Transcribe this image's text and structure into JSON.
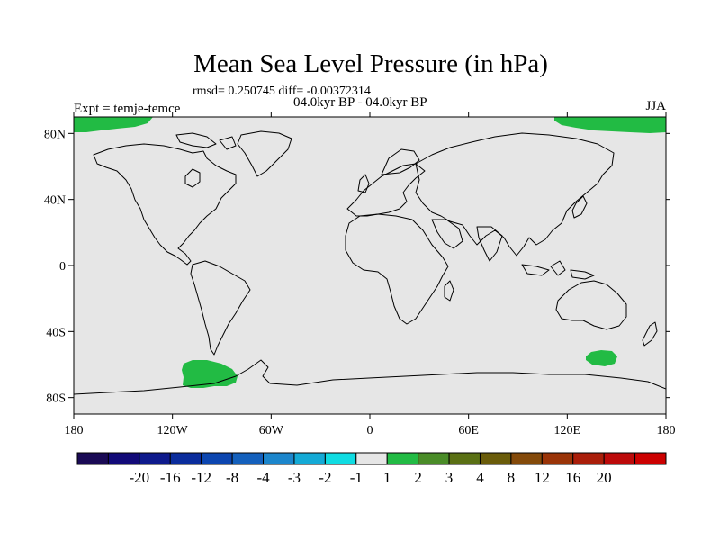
{
  "title": "Mean Sea Level Pressure (in hPa)",
  "stats_line": "rmsd= 0.250745  diff= -0.00372314",
  "subtitle": "04.0kyr BP - 04.0kyr BP",
  "left_label": "Expt = temje-temce",
  "right_label": "JJA",
  "map": {
    "projection": "cylindrical-equidistant",
    "lon_range": [
      -180,
      180
    ],
    "lat_range": [
      -90,
      90
    ],
    "background_color": "#e6e6e6",
    "coastline_color": "#000000",
    "lon_ticks": [
      {
        "value": -180,
        "label": "180"
      },
      {
        "value": -120,
        "label": "120W"
      },
      {
        "value": -60,
        "label": "60W"
      },
      {
        "value": 0,
        "label": "0"
      },
      {
        "value": 60,
        "label": "60E"
      },
      {
        "value": 120,
        "label": "120E"
      },
      {
        "value": 180,
        "label": "180"
      }
    ],
    "lat_ticks": [
      {
        "value": 80,
        "label": "80N"
      },
      {
        "value": 40,
        "label": "40N"
      },
      {
        "value": 0,
        "label": "0"
      },
      {
        "value": -40,
        "label": "40S"
      },
      {
        "value": -80,
        "label": "80S"
      }
    ],
    "anomaly_regions": [
      {
        "name": "arctic-north-west",
        "color": "#22bb44",
        "level": "1 to 2"
      },
      {
        "name": "arctic-north-east",
        "color": "#22bb44",
        "level": "1 to 2"
      },
      {
        "name": "south-pacific-amundsen-sea",
        "color": "#22bb44",
        "level": "1 to 2"
      },
      {
        "name": "south-indian-ocean-off-antarctica",
        "color": "#22bb44",
        "level": "1 to 2"
      }
    ]
  },
  "colorbar": {
    "colors": [
      "#1a0a55",
      "#120a78",
      "#0e1a8c",
      "#0a2c9c",
      "#0c46b0",
      "#1460bc",
      "#1c86cc",
      "#14aad6",
      "#10dce2",
      "#e6e6e6",
      "#22bb44",
      "#4a8c28",
      "#5a7014",
      "#6a5c0a",
      "#844a0a",
      "#9a3408",
      "#aa1e0a",
      "#bc0a0a",
      "#cc0000"
    ],
    "labels": [
      "-20",
      "-16",
      "-12",
      "-8",
      "-4",
      "-3",
      "-2",
      "-1",
      "1",
      "2",
      "3",
      "4",
      "8",
      "12",
      "16",
      "20"
    ]
  }
}
